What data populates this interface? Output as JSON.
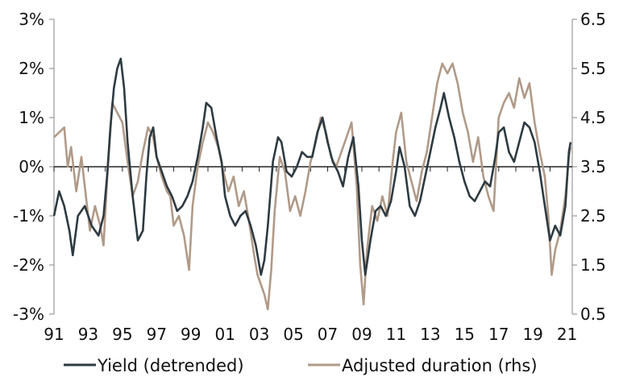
{
  "chart_data": {
    "type": "line",
    "title": "",
    "xlabel": "",
    "ylabel": "",
    "y2label": "",
    "x_tick_labels": [
      "91",
      "93",
      "95",
      "97",
      "99",
      "01",
      "03",
      "05",
      "07",
      "09",
      "11",
      "13",
      "15",
      "17",
      "19",
      "21"
    ],
    "x_range": [
      1991,
      2021.3
    ],
    "y_left": {
      "range": [
        -3,
        3
      ],
      "tick_labels": [
        "-3%",
        "-2%",
        "-1%",
        "0%",
        "1%",
        "2%",
        "3%"
      ],
      "tick_values": [
        -3,
        -2,
        -1,
        0,
        1,
        2,
        3
      ]
    },
    "y_right": {
      "range": [
        0.5,
        6.5
      ],
      "tick_labels": [
        "0.5",
        "1.5",
        "2.5",
        "3.5",
        "4.5",
        "5.5",
        "6.5"
      ],
      "tick_values": [
        0.5,
        1.5,
        2.5,
        3.5,
        4.5,
        5.5,
        6.5
      ]
    },
    "grid": false,
    "legend_position": "bottom",
    "series": [
      {
        "name": "Yield (detrended)",
        "axis": "left",
        "color": "#2d3a41",
        "points": [
          [
            1991.0,
            -1.0
          ],
          [
            1991.3,
            -0.5
          ],
          [
            1991.6,
            -0.8
          ],
          [
            1991.9,
            -1.3
          ],
          [
            1992.1,
            -1.8
          ],
          [
            1992.4,
            -1.0
          ],
          [
            1992.8,
            -0.8
          ],
          [
            1993.2,
            -1.2
          ],
          [
            1993.6,
            -1.4
          ],
          [
            1993.9,
            -1.0
          ],
          [
            1994.1,
            -0.2
          ],
          [
            1994.3,
            0.8
          ],
          [
            1994.5,
            1.6
          ],
          [
            1994.7,
            2.0
          ],
          [
            1994.9,
            2.2
          ],
          [
            1995.1,
            1.6
          ],
          [
            1995.3,
            0.5
          ],
          [
            1995.6,
            -0.6
          ],
          [
            1995.9,
            -1.5
          ],
          [
            1996.2,
            -1.3
          ],
          [
            1996.4,
            -0.2
          ],
          [
            1996.6,
            0.6
          ],
          [
            1996.8,
            0.8
          ],
          [
            1997.0,
            0.2
          ],
          [
            1997.3,
            -0.1
          ],
          [
            1997.6,
            -0.4
          ],
          [
            1997.9,
            -0.6
          ],
          [
            1998.2,
            -0.9
          ],
          [
            1998.5,
            -0.8
          ],
          [
            1998.8,
            -0.6
          ],
          [
            1999.1,
            -0.3
          ],
          [
            1999.4,
            0.2
          ],
          [
            1999.7,
            0.8
          ],
          [
            1999.9,
            1.3
          ],
          [
            2000.2,
            1.2
          ],
          [
            2000.5,
            0.6
          ],
          [
            2000.8,
            0.1
          ],
          [
            2001.0,
            -0.6
          ],
          [
            2001.3,
            -1.0
          ],
          [
            2001.6,
            -1.2
          ],
          [
            2001.9,
            -1.0
          ],
          [
            2002.2,
            -0.9
          ],
          [
            2002.5,
            -1.2
          ],
          [
            2002.8,
            -1.6
          ],
          [
            2003.1,
            -2.2
          ],
          [
            2003.3,
            -1.9
          ],
          [
            2003.5,
            -1.2
          ],
          [
            2003.8,
            0.1
          ],
          [
            2004.1,
            0.6
          ],
          [
            2004.3,
            0.5
          ],
          [
            2004.6,
            -0.1
          ],
          [
            2004.9,
            -0.2
          ],
          [
            2005.2,
            0.0
          ],
          [
            2005.5,
            0.3
          ],
          [
            2005.8,
            0.2
          ],
          [
            2006.1,
            0.2
          ],
          [
            2006.4,
            0.7
          ],
          [
            2006.7,
            1.0
          ],
          [
            2007.0,
            0.5
          ],
          [
            2007.3,
            0.1
          ],
          [
            2007.6,
            -0.1
          ],
          [
            2007.9,
            -0.4
          ],
          [
            2008.2,
            0.2
          ],
          [
            2008.5,
            0.6
          ],
          [
            2008.8,
            -0.4
          ],
          [
            2009.0,
            -1.5
          ],
          [
            2009.2,
            -2.2
          ],
          [
            2009.5,
            -1.5
          ],
          [
            2009.8,
            -0.9
          ],
          [
            2010.1,
            -0.8
          ],
          [
            2010.4,
            -1.0
          ],
          [
            2010.7,
            -0.7
          ],
          [
            2011.0,
            -0.1
          ],
          [
            2011.2,
            0.4
          ],
          [
            2011.5,
            0.0
          ],
          [
            2011.8,
            -0.8
          ],
          [
            2012.1,
            -1.0
          ],
          [
            2012.4,
            -0.7
          ],
          [
            2012.7,
            -0.2
          ],
          [
            2013.0,
            0.3
          ],
          [
            2013.3,
            0.8
          ],
          [
            2013.6,
            1.2
          ],
          [
            2013.8,
            1.5
          ],
          [
            2014.1,
            1.0
          ],
          [
            2014.4,
            0.6
          ],
          [
            2014.7,
            0.1
          ],
          [
            2015.0,
            -0.3
          ],
          [
            2015.3,
            -0.6
          ],
          [
            2015.6,
            -0.7
          ],
          [
            2015.9,
            -0.5
          ],
          [
            2016.2,
            -0.3
          ],
          [
            2016.5,
            -0.4
          ],
          [
            2016.8,
            0.2
          ],
          [
            2017.0,
            0.7
          ],
          [
            2017.3,
            0.8
          ],
          [
            2017.6,
            0.3
          ],
          [
            2017.9,
            0.1
          ],
          [
            2018.2,
            0.5
          ],
          [
            2018.5,
            0.9
          ],
          [
            2018.8,
            0.8
          ],
          [
            2019.1,
            0.5
          ],
          [
            2019.4,
            -0.1
          ],
          [
            2019.7,
            -0.8
          ],
          [
            2020.0,
            -1.5
          ],
          [
            2020.3,
            -1.2
          ],
          [
            2020.6,
            -1.4
          ],
          [
            2020.9,
            -0.8
          ],
          [
            2021.1,
            0.3
          ],
          [
            2021.2,
            0.5
          ]
        ]
      },
      {
        "name": "Adjusted duration (rhs)",
        "axis": "right",
        "color": "#b09a88",
        "points": [
          [
            1991.0,
            4.1
          ],
          [
            1991.3,
            4.2
          ],
          [
            1991.6,
            4.3
          ],
          [
            1991.8,
            3.5
          ],
          [
            1992.0,
            3.9
          ],
          [
            1992.3,
            3.0
          ],
          [
            1992.6,
            3.7
          ],
          [
            1992.9,
            2.8
          ],
          [
            1993.1,
            2.2
          ],
          [
            1993.4,
            2.7
          ],
          [
            1993.7,
            2.3
          ],
          [
            1993.9,
            1.9
          ],
          [
            1994.1,
            3.2
          ],
          [
            1994.4,
            4.8
          ],
          [
            1994.7,
            4.6
          ],
          [
            1995.0,
            4.4
          ],
          [
            1995.3,
            3.6
          ],
          [
            1995.6,
            2.9
          ],
          [
            1995.9,
            3.2
          ],
          [
            1996.2,
            3.8
          ],
          [
            1996.5,
            4.3
          ],
          [
            1996.8,
            4.1
          ],
          [
            1997.0,
            3.7
          ],
          [
            1997.3,
            3.3
          ],
          [
            1997.6,
            3.0
          ],
          [
            1997.8,
            2.9
          ],
          [
            1998.0,
            2.3
          ],
          [
            1998.3,
            2.5
          ],
          [
            1998.6,
            2.1
          ],
          [
            1998.9,
            1.4
          ],
          [
            1999.1,
            2.7
          ],
          [
            1999.4,
            3.5
          ],
          [
            1999.7,
            4.0
          ],
          [
            2000.0,
            4.4
          ],
          [
            2000.3,
            4.2
          ],
          [
            2000.6,
            3.9
          ],
          [
            2000.9,
            3.4
          ],
          [
            2001.2,
            3.0
          ],
          [
            2001.5,
            3.3
          ],
          [
            2001.8,
            2.7
          ],
          [
            2002.1,
            3.0
          ],
          [
            2002.4,
            2.4
          ],
          [
            2002.7,
            1.7
          ],
          [
            2002.9,
            1.3
          ],
          [
            2003.1,
            1.1
          ],
          [
            2003.3,
            0.9
          ],
          [
            2003.5,
            0.6
          ],
          [
            2003.7,
            1.4
          ],
          [
            2003.9,
            2.6
          ],
          [
            2004.2,
            3.7
          ],
          [
            2004.5,
            3.4
          ],
          [
            2004.8,
            2.6
          ],
          [
            2005.1,
            2.9
          ],
          [
            2005.4,
            2.5
          ],
          [
            2005.7,
            3.0
          ],
          [
            2006.0,
            3.6
          ],
          [
            2006.3,
            4.0
          ],
          [
            2006.6,
            4.5
          ],
          [
            2006.9,
            4.2
          ],
          [
            2007.2,
            3.7
          ],
          [
            2007.5,
            3.5
          ],
          [
            2007.8,
            3.8
          ],
          [
            2008.1,
            4.1
          ],
          [
            2008.4,
            4.4
          ],
          [
            2008.7,
            3.1
          ],
          [
            2008.9,
            1.5
          ],
          [
            2009.1,
            0.7
          ],
          [
            2009.3,
            1.8
          ],
          [
            2009.6,
            2.7
          ],
          [
            2009.9,
            2.4
          ],
          [
            2010.2,
            2.9
          ],
          [
            2010.5,
            2.5
          ],
          [
            2010.8,
            3.6
          ],
          [
            2011.0,
            4.2
          ],
          [
            2011.3,
            4.6
          ],
          [
            2011.6,
            3.6
          ],
          [
            2011.9,
            3.2
          ],
          [
            2012.2,
            2.8
          ],
          [
            2012.5,
            3.4
          ],
          [
            2012.8,
            3.8
          ],
          [
            2013.1,
            4.5
          ],
          [
            2013.4,
            5.2
          ],
          [
            2013.7,
            5.6
          ],
          [
            2014.0,
            5.4
          ],
          [
            2014.3,
            5.6
          ],
          [
            2014.6,
            5.2
          ],
          [
            2014.9,
            4.6
          ],
          [
            2015.2,
            4.2
          ],
          [
            2015.5,
            3.6
          ],
          [
            2015.8,
            4.1
          ],
          [
            2016.1,
            3.3
          ],
          [
            2016.4,
            2.9
          ],
          [
            2016.7,
            2.6
          ],
          [
            2017.0,
            4.5
          ],
          [
            2017.3,
            4.8
          ],
          [
            2017.6,
            5.0
          ],
          [
            2017.9,
            4.7
          ],
          [
            2018.2,
            5.3
          ],
          [
            2018.5,
            4.9
          ],
          [
            2018.8,
            5.2
          ],
          [
            2019.1,
            4.4
          ],
          [
            2019.4,
            3.8
          ],
          [
            2019.7,
            3.3
          ],
          [
            2019.9,
            2.5
          ],
          [
            2020.1,
            1.3
          ],
          [
            2020.3,
            1.8
          ],
          [
            2020.6,
            2.2
          ],
          [
            2020.9,
            2.9
          ],
          [
            2021.1,
            3.7
          ],
          [
            2021.2,
            3.9
          ]
        ]
      }
    ]
  }
}
